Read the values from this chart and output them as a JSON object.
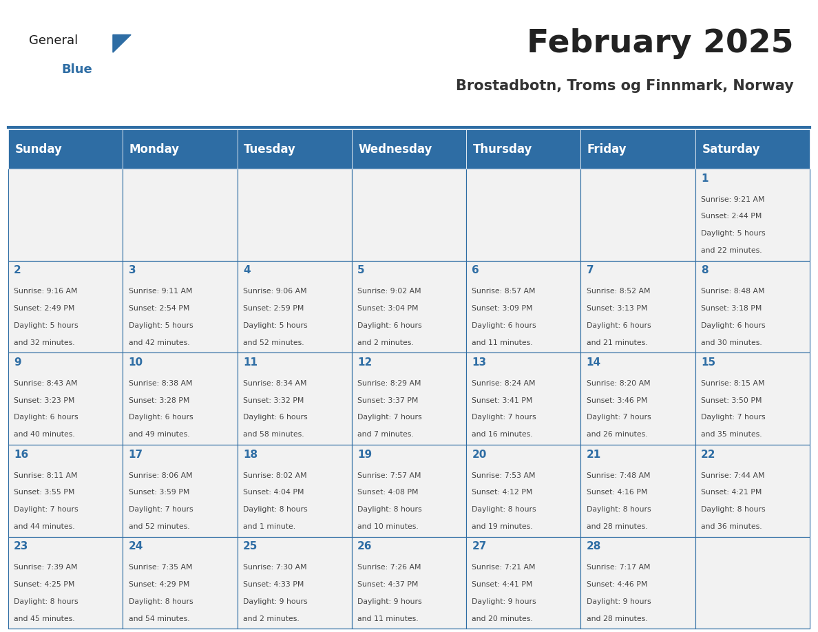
{
  "title": "February 2025",
  "subtitle": "Brostadbotn, Troms og Finnmark, Norway",
  "days_of_week": [
    "Sunday",
    "Monday",
    "Tuesday",
    "Wednesday",
    "Thursday",
    "Friday",
    "Saturday"
  ],
  "header_bg": "#2E6DA4",
  "header_text": "#FFFFFF",
  "cell_bg": "#F2F2F2",
  "border_color": "#2E6DA4",
  "title_color": "#222222",
  "subtitle_color": "#333333",
  "day_num_color": "#2E6DA4",
  "cell_text_color": "#444444",
  "logo_general_color": "#1a1a1a",
  "logo_blue_color": "#2E6DA4",
  "calendar": [
    [
      null,
      null,
      null,
      null,
      null,
      null,
      1
    ],
    [
      2,
      3,
      4,
      5,
      6,
      7,
      8
    ],
    [
      9,
      10,
      11,
      12,
      13,
      14,
      15
    ],
    [
      16,
      17,
      18,
      19,
      20,
      21,
      22
    ],
    [
      23,
      24,
      25,
      26,
      27,
      28,
      null
    ]
  ],
  "cell_data": {
    "1": [
      "Sunrise: 9:21 AM",
      "Sunset: 2:44 PM",
      "Daylight: 5 hours",
      "and 22 minutes."
    ],
    "2": [
      "Sunrise: 9:16 AM",
      "Sunset: 2:49 PM",
      "Daylight: 5 hours",
      "and 32 minutes."
    ],
    "3": [
      "Sunrise: 9:11 AM",
      "Sunset: 2:54 PM",
      "Daylight: 5 hours",
      "and 42 minutes."
    ],
    "4": [
      "Sunrise: 9:06 AM",
      "Sunset: 2:59 PM",
      "Daylight: 5 hours",
      "and 52 minutes."
    ],
    "5": [
      "Sunrise: 9:02 AM",
      "Sunset: 3:04 PM",
      "Daylight: 6 hours",
      "and 2 minutes."
    ],
    "6": [
      "Sunrise: 8:57 AM",
      "Sunset: 3:09 PM",
      "Daylight: 6 hours",
      "and 11 minutes."
    ],
    "7": [
      "Sunrise: 8:52 AM",
      "Sunset: 3:13 PM",
      "Daylight: 6 hours",
      "and 21 minutes."
    ],
    "8": [
      "Sunrise: 8:48 AM",
      "Sunset: 3:18 PM",
      "Daylight: 6 hours",
      "and 30 minutes."
    ],
    "9": [
      "Sunrise: 8:43 AM",
      "Sunset: 3:23 PM",
      "Daylight: 6 hours",
      "and 40 minutes."
    ],
    "10": [
      "Sunrise: 8:38 AM",
      "Sunset: 3:28 PM",
      "Daylight: 6 hours",
      "and 49 minutes."
    ],
    "11": [
      "Sunrise: 8:34 AM",
      "Sunset: 3:32 PM",
      "Daylight: 6 hours",
      "and 58 minutes."
    ],
    "12": [
      "Sunrise: 8:29 AM",
      "Sunset: 3:37 PM",
      "Daylight: 7 hours",
      "and 7 minutes."
    ],
    "13": [
      "Sunrise: 8:24 AM",
      "Sunset: 3:41 PM",
      "Daylight: 7 hours",
      "and 16 minutes."
    ],
    "14": [
      "Sunrise: 8:20 AM",
      "Sunset: 3:46 PM",
      "Daylight: 7 hours",
      "and 26 minutes."
    ],
    "15": [
      "Sunrise: 8:15 AM",
      "Sunset: 3:50 PM",
      "Daylight: 7 hours",
      "and 35 minutes."
    ],
    "16": [
      "Sunrise: 8:11 AM",
      "Sunset: 3:55 PM",
      "Daylight: 7 hours",
      "and 44 minutes."
    ],
    "17": [
      "Sunrise: 8:06 AM",
      "Sunset: 3:59 PM",
      "Daylight: 7 hours",
      "and 52 minutes."
    ],
    "18": [
      "Sunrise: 8:02 AM",
      "Sunset: 4:04 PM",
      "Daylight: 8 hours",
      "and 1 minute."
    ],
    "19": [
      "Sunrise: 7:57 AM",
      "Sunset: 4:08 PM",
      "Daylight: 8 hours",
      "and 10 minutes."
    ],
    "20": [
      "Sunrise: 7:53 AM",
      "Sunset: 4:12 PM",
      "Daylight: 8 hours",
      "and 19 minutes."
    ],
    "21": [
      "Sunrise: 7:48 AM",
      "Sunset: 4:16 PM",
      "Daylight: 8 hours",
      "and 28 minutes."
    ],
    "22": [
      "Sunrise: 7:44 AM",
      "Sunset: 4:21 PM",
      "Daylight: 8 hours",
      "and 36 minutes."
    ],
    "23": [
      "Sunrise: 7:39 AM",
      "Sunset: 4:25 PM",
      "Daylight: 8 hours",
      "and 45 minutes."
    ],
    "24": [
      "Sunrise: 7:35 AM",
      "Sunset: 4:29 PM",
      "Daylight: 8 hours",
      "and 54 minutes."
    ],
    "25": [
      "Sunrise: 7:30 AM",
      "Sunset: 4:33 PM",
      "Daylight: 9 hours",
      "and 2 minutes."
    ],
    "26": [
      "Sunrise: 7:26 AM",
      "Sunset: 4:37 PM",
      "Daylight: 9 hours",
      "and 11 minutes."
    ],
    "27": [
      "Sunrise: 7:21 AM",
      "Sunset: 4:41 PM",
      "Daylight: 9 hours",
      "and 20 minutes."
    ],
    "28": [
      "Sunrise: 7:17 AM",
      "Sunset: 4:46 PM",
      "Daylight: 9 hours",
      "and 28 minutes."
    ]
  }
}
